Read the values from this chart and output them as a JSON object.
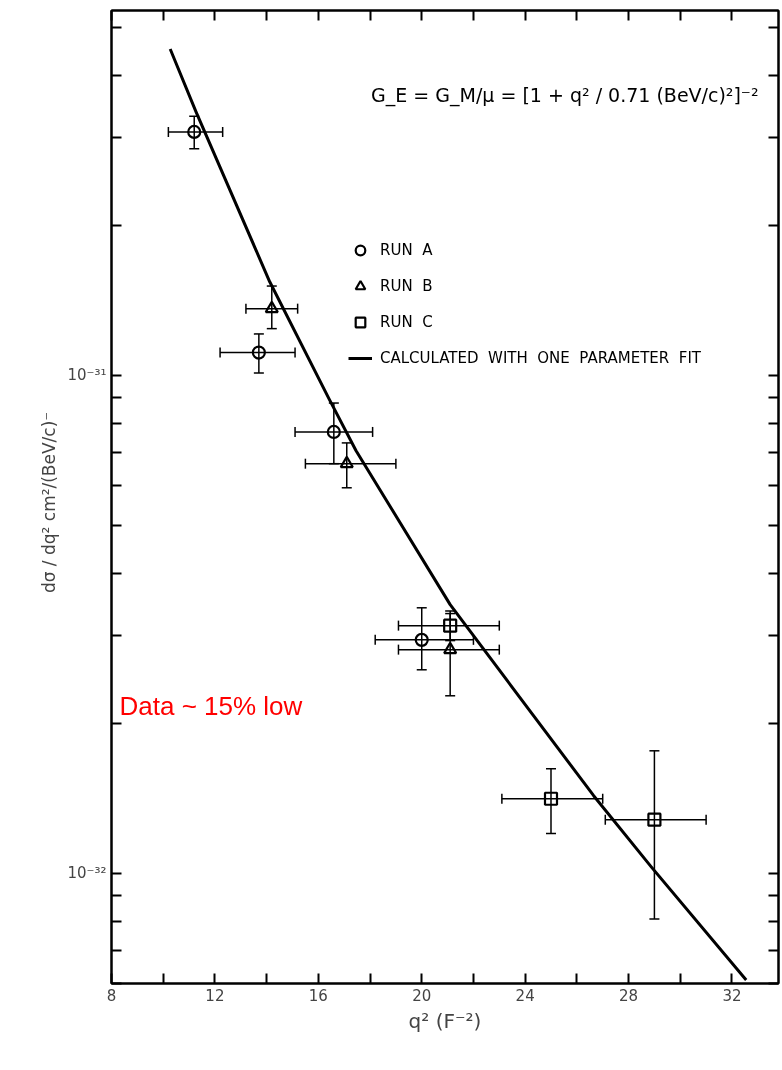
{
  "chart_data": {
    "type": "scatter",
    "xlabel": "q² (F⁻²)",
    "ylabel": "dσ / dq²   cm²/(BeV/c)⁻",
    "log": "y",
    "grid": false,
    "legend": "top right",
    "xlim": [
      8,
      33.8
    ],
    "ylim": [
      6e-33,
      5.4e-31
    ],
    "xticks": [
      8,
      {
        "value": 10,
        "label": null
      },
      12,
      {
        "value": 14,
        "label": null
      },
      16,
      {
        "value": 18,
        "label": null
      },
      20,
      {
        "value": 22,
        "label": null
      },
      24,
      {
        "value": 26,
        "label": null
      },
      28,
      {
        "value": 30,
        "label": null
      },
      32
    ],
    "yticks": [
      {
        "value": 6e-33,
        "label": null
      },
      {
        "value": 7e-33,
        "label": null
      },
      {
        "value": 8e-33,
        "label": null
      },
      {
        "value": 9e-33,
        "label": null
      },
      {
        "value": 1e-32,
        "label": "10⁻³²"
      },
      {
        "value": 2e-32,
        "label": null
      },
      {
        "value": 3e-32,
        "label": null
      },
      {
        "value": 4e-32,
        "label": null
      },
      {
        "value": 5e-32,
        "label": null
      },
      {
        "value": 6e-32,
        "label": null
      },
      {
        "value": 7e-32,
        "label": null
      },
      {
        "value": 8e-32,
        "label": null
      },
      {
        "value": 9e-32,
        "label": null
      },
      {
        "value": 1e-31,
        "label": "10⁻³¹"
      },
      {
        "value": 2e-31,
        "label": null
      },
      {
        "value": 3e-31,
        "label": null
      },
      {
        "value": 4e-31,
        "label": null
      },
      {
        "value": 5e-31,
        "label": null
      }
    ],
    "series": [
      {
        "name": "RUN  A",
        "marker": "circle",
        "color": "#000000",
        "x": [
          11.2,
          13.7,
          16.6,
          20.0
        ],
        "values": [
          3.08e-31,
          1.11e-31,
          7.69e-32,
          2.94e-32
        ],
        "xerrors": [
          [
            10.2,
            12.3
          ],
          [
            12.2,
            15.1
          ],
          [
            15.1,
            18.1
          ],
          [
            18.2,
            22.0
          ]
        ],
        "errors": [
          [
            2.85e-31,
            3.31e-31
          ],
          [
            1.01e-31,
            1.21e-31
          ],
          [
            6.64e-32,
            8.79e-32
          ],
          [
            2.56e-32,
            3.41e-32
          ]
        ]
      },
      {
        "name": "RUN  B",
        "marker": "triangle",
        "color": "#000000",
        "x": [
          14.2,
          17.1,
          21.1
        ],
        "values": [
          1.36e-31,
          6.64e-32,
          2.81e-32
        ],
        "xerrors": [
          [
            13.2,
            15.2
          ],
          [
            15.5,
            19.0
          ],
          [
            19.1,
            23.0
          ]
        ],
        "errors": [
          [
            1.24e-31,
            1.51e-31
          ],
          [
            5.94e-32,
            7.31e-32
          ],
          [
            2.27e-32,
            3.32e-32
          ]
        ]
      },
      {
        "name": "RUN  C",
        "marker": "square",
        "color": "#000000",
        "x": [
          21.1,
          25.0,
          29.0
        ],
        "values": [
          3.14e-32,
          1.41e-32,
          1.28e-32
        ],
        "xerrors": [
          [
            19.1,
            23.0
          ],
          [
            23.1,
            27.0
          ],
          [
            27.1,
            31.0
          ]
        ],
        "errors": [
          [
            2.93e-32,
            3.36e-32
          ],
          [
            1.2e-32,
            1.62e-32
          ],
          [
            8.09e-33,
            1.76e-32
          ]
        ]
      },
      {
        "name": "CALCULATED  WITH  ONE  PARAMETER  FIT",
        "type": "line",
        "line_style": "solid",
        "color": "#000000",
        "x": [
          10.27,
          11.27,
          14.12,
          16.42,
          17.46,
          21.1,
          26.65,
          28.87,
          32.55
        ],
        "values": [
          4.52e-31,
          3.38e-31,
          1.54e-31,
          8.95e-32,
          7.05e-32,
          3.46e-32,
          1.43e-32,
          1.03e-32,
          6.1e-33
        ]
      }
    ],
    "annotations": [
      "G_E = G_M/μ = [1 + q² / 0.71 (BeV/c)²]⁻²",
      "Data ~ 15% low"
    ]
  }
}
